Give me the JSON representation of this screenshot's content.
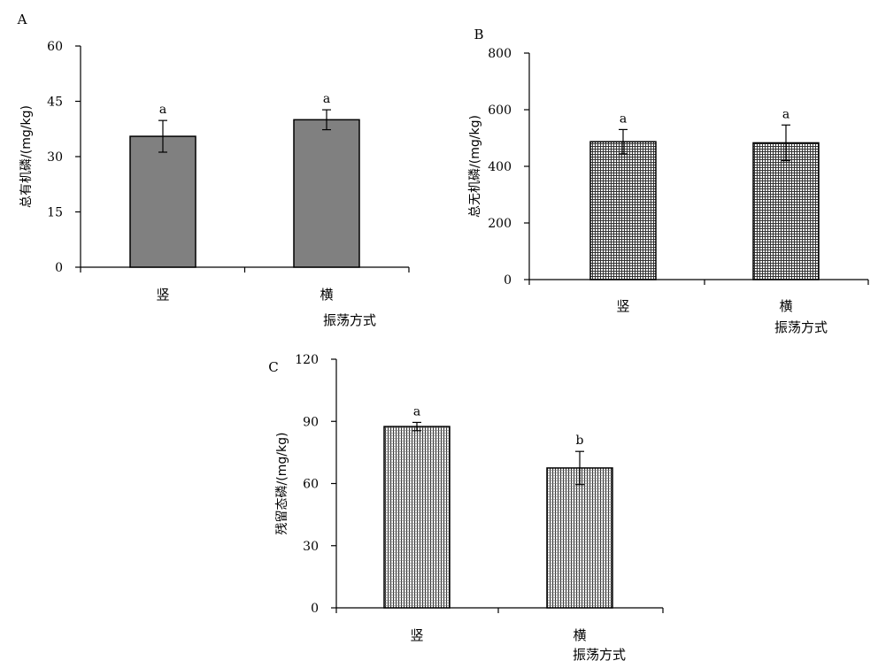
{
  "chart_data": [
    {
      "type": "bar",
      "panel_label": "A",
      "categories": [
        "竖",
        "横"
      ],
      "values": [
        35.5,
        40.0
      ],
      "error": [
        4.3,
        2.7
      ],
      "significance": [
        "a",
        "a"
      ],
      "ylabel": "总有机磷/(mg/kg)",
      "xlabel": "振荡方式",
      "ylim": [
        0,
        60
      ],
      "yticks": [
        0,
        15,
        30,
        45,
        60
      ],
      "bar_fill": "#808080",
      "bar_pattern": "solid",
      "grid": false
    },
    {
      "type": "bar",
      "panel_label": "B",
      "categories": [
        "竖",
        "横"
      ],
      "values": [
        487,
        483
      ],
      "error": [
        43,
        63
      ],
      "significance": [
        "a",
        "a"
      ],
      "ylabel": "总无机磷/(mg/kg)",
      "xlabel": "振荡方式",
      "ylim": [
        0,
        800
      ],
      "yticks": [
        0,
        200,
        400,
        600,
        800
      ],
      "bar_fill": "#999999",
      "bar_pattern": "grid",
      "grid": false
    },
    {
      "type": "bar",
      "panel_label": "C",
      "categories": [
        "竖",
        "横"
      ],
      "values": [
        87.5,
        67.5
      ],
      "error": [
        2.0,
        8.0
      ],
      "significance": [
        "a",
        "b"
      ],
      "ylabel": "残留态磷/(mg/kg)",
      "xlabel": "振荡方式",
      "ylim": [
        0,
        120
      ],
      "yticks": [
        0,
        30,
        60,
        90,
        120
      ],
      "bar_fill": "#999999",
      "bar_pattern": "vertical-lines",
      "grid": false
    }
  ]
}
